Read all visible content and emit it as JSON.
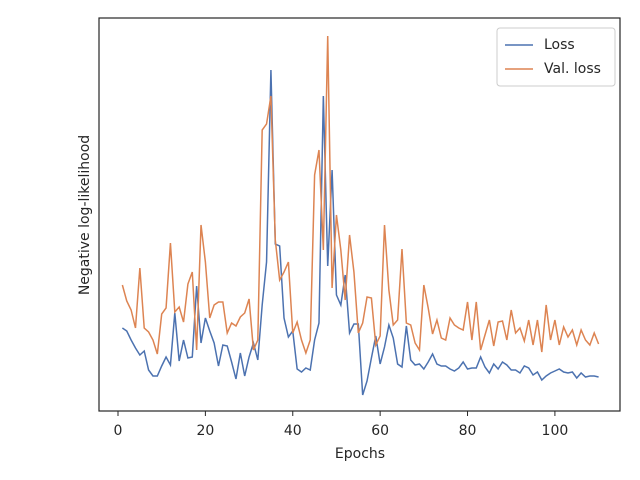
{
  "chart_data": {
    "type": "line",
    "xlabel": "Epochs",
    "ylabel": "Negative log-likelihood",
    "x": [
      1,
      2,
      3,
      4,
      5,
      6,
      7,
      8,
      9,
      10,
      11,
      12,
      13,
      14,
      15,
      16,
      17,
      18,
      19,
      20,
      21,
      22,
      23,
      24,
      25,
      26,
      27,
      28,
      29,
      30,
      31,
      32,
      33,
      34,
      35,
      36,
      37,
      38,
      39,
      40,
      41,
      42,
      43,
      44,
      45,
      46,
      47,
      48,
      49,
      50,
      51,
      52,
      53,
      54,
      55,
      56,
      57,
      58,
      59,
      60,
      61,
      62,
      63,
      64,
      65,
      66,
      67,
      68,
      69,
      70,
      71,
      72,
      73,
      74,
      75,
      76,
      77,
      78,
      79,
      80,
      81,
      82,
      83,
      84,
      85,
      86,
      87,
      88,
      89,
      90,
      91,
      92,
      93,
      94,
      95,
      96,
      97,
      98,
      99,
      100,
      101,
      102,
      103,
      104,
      105,
      106,
      107,
      108,
      109,
      110
    ],
    "series": [
      {
        "name": "Loss",
        "color": "#4c72b0",
        "values": [
          83,
          80,
          71,
          63,
          56,
          60,
          41,
          35,
          35,
          45,
          54,
          46,
          98,
          50,
          71,
          53,
          54,
          125,
          68,
          93,
          80,
          68,
          45,
          66,
          65,
          49,
          32,
          58,
          35,
          54,
          68,
          51,
          106,
          149,
          341,
          167,
          165,
          93,
          74,
          80,
          42,
          39,
          43,
          41,
          71,
          88,
          315,
          145,
          241,
          116,
          106,
          136,
          78,
          87,
          87,
          16,
          30,
          53,
          75,
          47,
          64,
          86,
          73,
          47,
          44,
          85,
          51,
          46,
          47,
          42,
          49,
          57,
          47,
          45,
          45,
          42,
          40,
          43,
          49,
          42,
          43,
          43,
          54,
          44,
          38,
          47,
          42,
          49,
          46,
          41,
          41,
          38,
          45,
          43,
          36,
          39,
          31,
          35,
          38,
          40,
          42,
          39,
          38,
          39,
          33,
          38,
          34,
          35,
          35,
          34
        ]
      },
      {
        "name": "Val. loss",
        "color": "#dd8452",
        "values": [
          126,
          110,
          101,
          83,
          143,
          83,
          79,
          71,
          57,
          97,
          103,
          168,
          99,
          104,
          89,
          127,
          139,
          61,
          186,
          149,
          93,
          106,
          109,
          109,
          78,
          88,
          85,
          94,
          98,
          112,
          61,
          71,
          281,
          287,
          315,
          171,
          131,
          139,
          149,
          78,
          89,
          71,
          58,
          71,
          236,
          261,
          161,
          375,
          123,
          196,
          161,
          111,
          176,
          139,
          78,
          88,
          114,
          113,
          66,
          75,
          186,
          121,
          86,
          91,
          162,
          88,
          86,
          68,
          61,
          126,
          103,
          77,
          91,
          73,
          71,
          93,
          86,
          83,
          81,
          109,
          71,
          109,
          61,
          76,
          91,
          65,
          89,
          90,
          71,
          101,
          78,
          83,
          70,
          91,
          66,
          91,
          59,
          106,
          71,
          91,
          66,
          84,
          74,
          81,
          66,
          81,
          71,
          66,
          78,
          67
        ]
      }
    ],
    "xlim": [
      -4.35,
      114.9
    ],
    "xticks": [
      0,
      20,
      40,
      60,
      80,
      100
    ],
    "ylim": [
      0,
      393
    ],
    "legend": "upper right"
  }
}
